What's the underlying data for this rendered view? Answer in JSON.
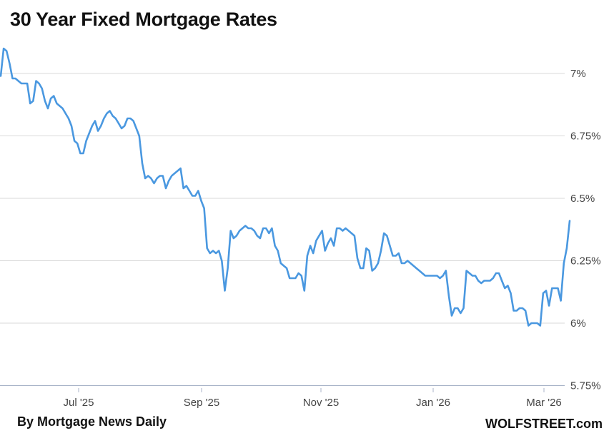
{
  "title": "30 Year Fixed Mortgage Rates",
  "source": "By Mortgage News Daily",
  "brand": "WOLFSTREET.com",
  "colors": {
    "line": "#4a98e0",
    "grid": "#d9d9d9",
    "text": "#444444"
  },
  "chart_data": {
    "type": "line",
    "title": "30 Year Fixed Mortgage Rates",
    "xlabel": "",
    "ylabel": "",
    "x_tick_labels": [
      "Jul '25",
      "Sep '25",
      "Nov '25",
      "Jan '26",
      "Mar '26"
    ],
    "y_tick_labels": [
      "7%",
      "6.75%",
      "6.5%",
      "6.25%",
      "6%",
      "5.75%"
    ],
    "y_ticks": [
      7.0,
      6.75,
      6.5,
      6.25,
      6.0,
      5.75
    ],
    "ylim": [
      5.75,
      7.1
    ],
    "grid": "horizontal",
    "legend": "none",
    "series": [
      {
        "values": [
          6.99,
          7.1,
          7.09,
          7.04,
          6.98,
          6.98,
          6.97,
          6.96,
          6.96,
          6.96,
          6.88,
          6.89,
          6.97,
          6.96,
          6.94,
          6.89,
          6.86,
          6.9,
          6.91,
          6.88,
          6.87,
          6.86,
          6.84,
          6.82,
          6.79,
          6.73,
          6.72,
          6.68,
          6.68,
          6.73,
          6.76,
          6.79,
          6.81,
          6.77,
          6.79,
          6.82,
          6.84,
          6.85,
          6.83,
          6.82,
          6.8,
          6.78,
          6.79,
          6.82,
          6.82,
          6.81,
          6.78,
          6.75,
          6.64,
          6.58,
          6.59,
          6.58,
          6.56,
          6.58,
          6.59,
          6.59,
          6.54,
          6.57,
          6.59,
          6.6,
          6.61,
          6.62,
          6.54,
          6.55,
          6.53,
          6.51,
          6.51,
          6.53,
          6.49,
          6.46,
          6.3,
          6.28,
          6.29,
          6.28,
          6.29,
          6.25,
          6.13,
          6.22,
          6.37,
          6.34,
          6.35,
          6.37,
          6.38,
          6.39,
          6.38,
          6.38,
          6.37,
          6.35,
          6.34,
          6.38,
          6.38,
          6.36,
          6.38,
          6.31,
          6.29,
          6.24,
          6.23,
          6.22,
          6.18,
          6.18,
          6.18,
          6.2,
          6.19,
          6.13,
          6.27,
          6.31,
          6.28,
          6.33,
          6.35,
          6.37,
          6.29,
          6.32,
          6.34,
          6.31,
          6.38,
          6.38,
          6.37,
          6.38,
          6.37,
          6.36,
          6.35,
          6.26,
          6.22,
          6.22,
          6.3,
          6.29,
          6.21,
          6.22,
          6.24,
          6.29,
          6.36,
          6.35,
          6.31,
          6.27,
          6.27,
          6.28,
          6.24,
          6.24,
          6.25,
          6.24,
          6.23,
          6.22,
          6.21,
          6.2,
          6.19,
          6.19,
          6.19,
          6.19,
          6.19,
          6.18,
          6.19,
          6.21,
          6.11,
          6.03,
          6.06,
          6.06,
          6.04,
          6.06,
          6.21,
          6.2,
          6.19,
          6.19,
          6.17,
          6.16,
          6.17,
          6.17,
          6.17,
          6.18,
          6.2,
          6.2,
          6.17,
          6.14,
          6.15,
          6.12,
          6.05,
          6.05,
          6.06,
          6.06,
          6.05,
          5.99,
          6.0,
          6.0,
          6.0,
          5.99,
          6.12,
          6.13,
          6.07,
          6.14,
          6.14,
          6.14,
          6.09,
          6.24,
          6.3,
          6.41
        ]
      }
    ]
  }
}
